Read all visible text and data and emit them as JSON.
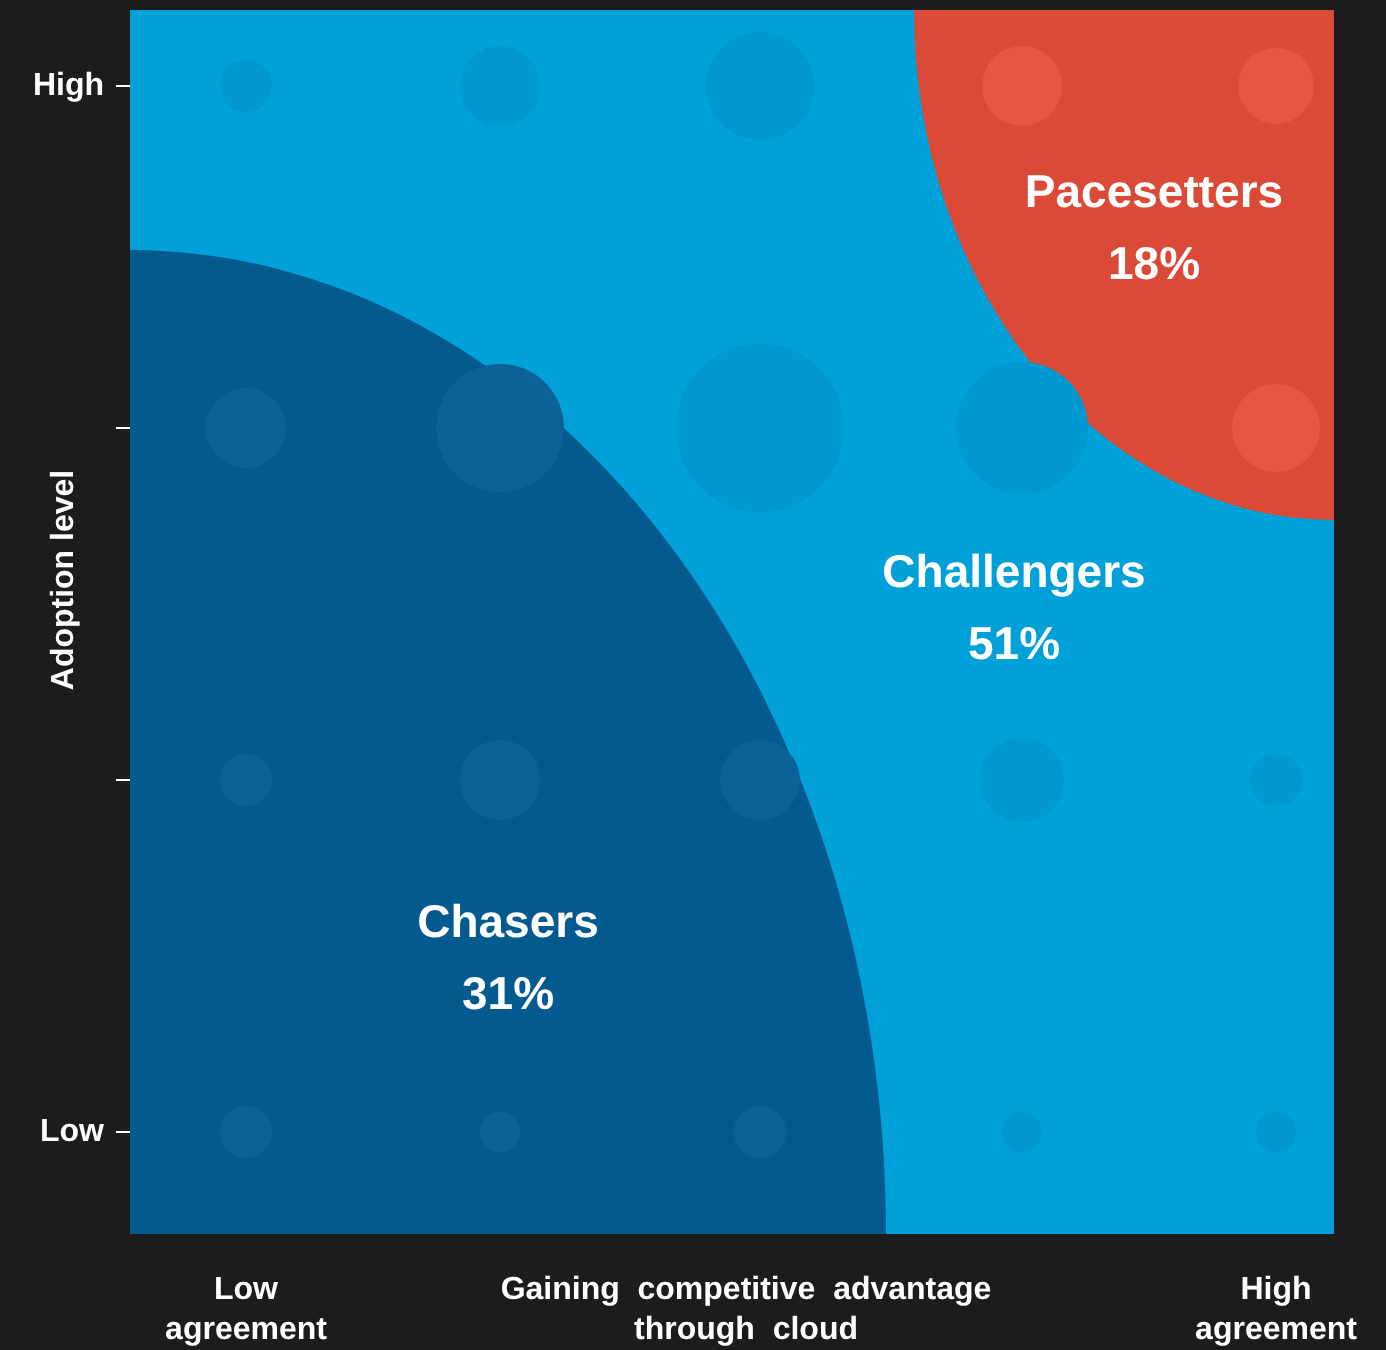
{
  "chart_data": {
    "type": "other",
    "xlabel": "Gaining  competitive  advantage through cloud",
    "ylabel": "Adoption level",
    "categories": [
      "Chasers",
      "Challengers",
      "Pacesetters"
    ],
    "values": [
      31,
      51,
      18
    ],
    "value_labels": [
      "31%",
      "51%",
      "18%"
    ],
    "colors": [
      "#035a8e",
      "#00a0d8",
      "#da4a36"
    ],
    "annotations": [
      "Low agreement",
      "High agreement",
      "High",
      "Low"
    ]
  }
}
